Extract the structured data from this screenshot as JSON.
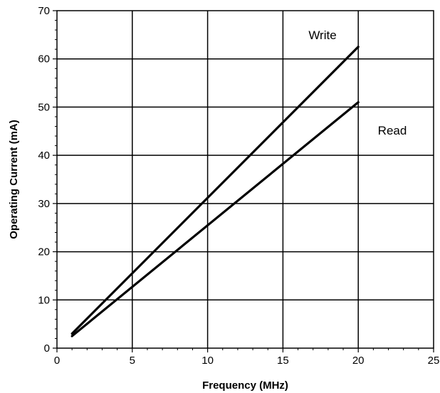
{
  "chart_data": {
    "type": "line",
    "xlabel": "Frequency (MHz)",
    "ylabel": "Operating Current  (mA)",
    "xlim": [
      0,
      25
    ],
    "ylim": [
      0,
      70
    ],
    "x_ticks": [
      0,
      5,
      10,
      15,
      20,
      25
    ],
    "y_ticks": [
      0,
      10,
      20,
      30,
      40,
      50,
      60,
      70
    ],
    "x_tick_labels": [
      "0",
      "5",
      "10",
      "15",
      "20",
      "25"
    ],
    "y_tick_labels": [
      "0",
      "10",
      "20",
      "30",
      "40",
      "50",
      "60",
      "70"
    ],
    "grid": true,
    "series": [
      {
        "name": "Write",
        "x": [
          1,
          20
        ],
        "y": [
          3,
          62.5
        ],
        "color": "#000000"
      },
      {
        "name": "Read",
        "x": [
          1,
          20
        ],
        "y": [
          2.5,
          51
        ],
        "color": "#000000"
      }
    ]
  }
}
